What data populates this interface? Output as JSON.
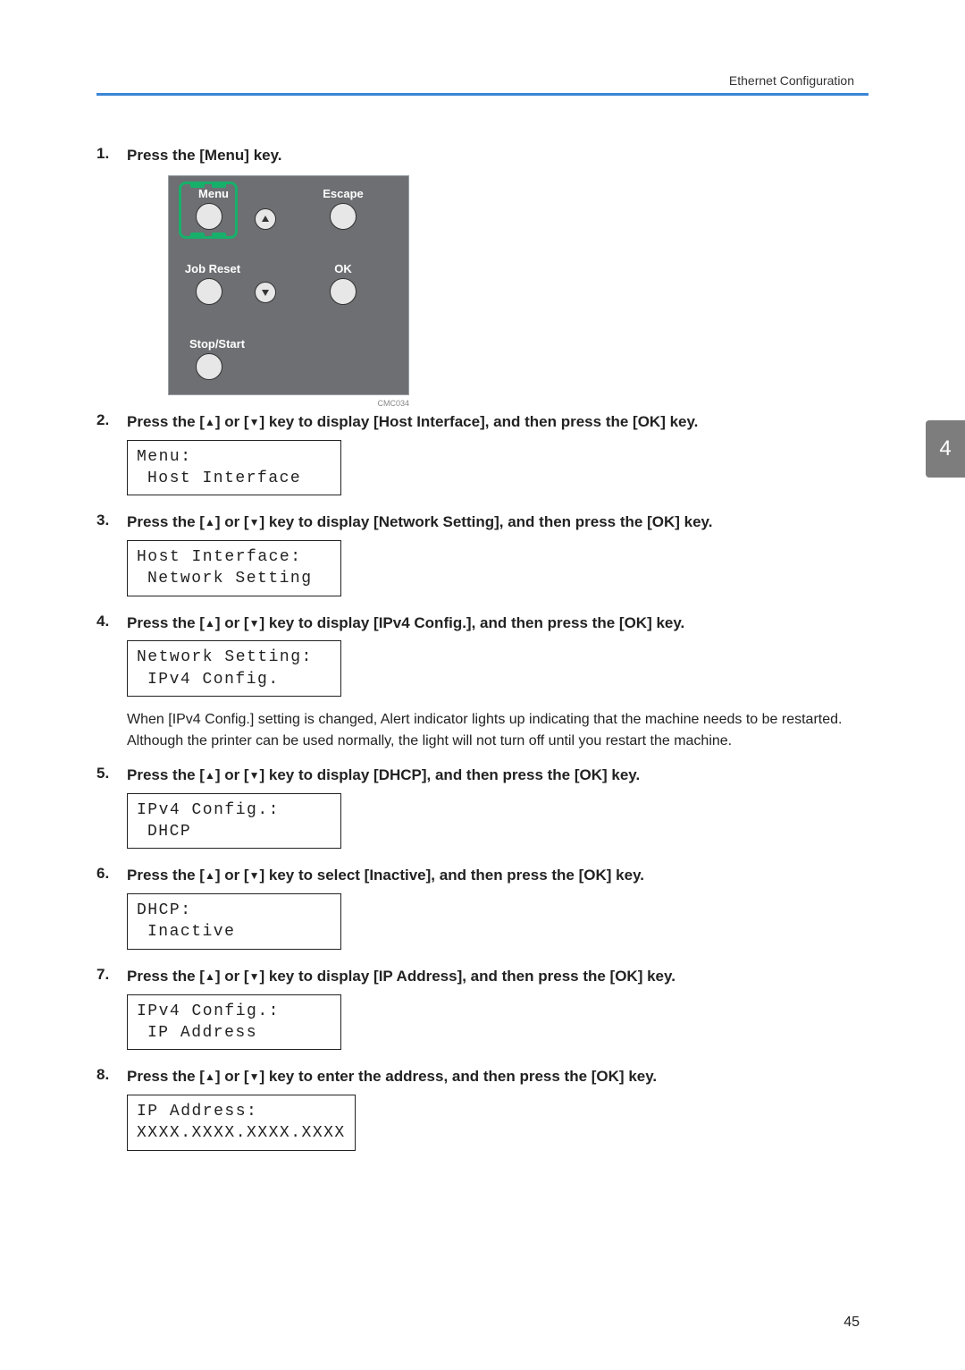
{
  "header": {
    "section_title": "Ethernet Configuration"
  },
  "page_number": "45",
  "side_tab": "4",
  "panel": {
    "menu": "Menu",
    "escape": "Escape",
    "job_reset": "Job Reset",
    "ok": "OK",
    "stop_start": "Stop/Start",
    "code": "CMC034"
  },
  "steps": [
    {
      "num": "1.",
      "text_parts": [
        "Press the [Menu] key."
      ],
      "has_panel": true
    },
    {
      "num": "2.",
      "text_parts": [
        "Press the [",
        "▲",
        "] or [",
        "▼",
        "] key to display [Host Interface], and then press the [OK] key."
      ],
      "lcd": [
        "Menu:",
        "Host Interface"
      ]
    },
    {
      "num": "3.",
      "text_parts": [
        "Press the [",
        "▲",
        "] or [",
        "▼",
        "] key to display [Network Setting], and then press the [OK] key."
      ],
      "lcd": [
        "Host Interface:",
        "Network Setting"
      ]
    },
    {
      "num": "4.",
      "text_parts": [
        "Press the [",
        "▲",
        "] or [",
        "▼",
        "] key to display [IPv4 Config.], and then press the [OK] key."
      ],
      "lcd": [
        "Network Setting:",
        "IPv4 Config."
      ],
      "note": "When [IPv4 Config.] setting is changed, Alert indicator lights up indicating that the machine needs to be restarted. Although the printer can be used normally, the light will not turn off until you restart the machine."
    },
    {
      "num": "5.",
      "text_parts": [
        "Press the [",
        "▲",
        "] or [",
        "▼",
        "] key to display [DHCP], and then press the [OK] key."
      ],
      "lcd": [
        "IPv4 Config.:",
        "DHCP"
      ]
    },
    {
      "num": "6.",
      "text_parts": [
        "Press the [",
        "▲",
        "] or [",
        "▼",
        "] key to select [Inactive], and then press the [OK] key."
      ],
      "lcd": [
        "DHCP:",
        "Inactive"
      ]
    },
    {
      "num": "7.",
      "text_parts": [
        "Press the [",
        "▲",
        "] or [",
        "▼",
        "] key to display [IP Address], and then press the [OK] key."
      ],
      "lcd": [
        "IPv4 Config.:",
        "IP Address"
      ]
    },
    {
      "num": "8.",
      "text_parts": [
        "Press the [",
        "▲",
        "] or [",
        "▼",
        "] key to enter the address, and then press the [OK] key."
      ],
      "lcd": [
        "IP Address:",
        "XXXX.XXXX.XXXX.XXXX"
      ],
      "lcd_no_indent": true
    }
  ]
}
